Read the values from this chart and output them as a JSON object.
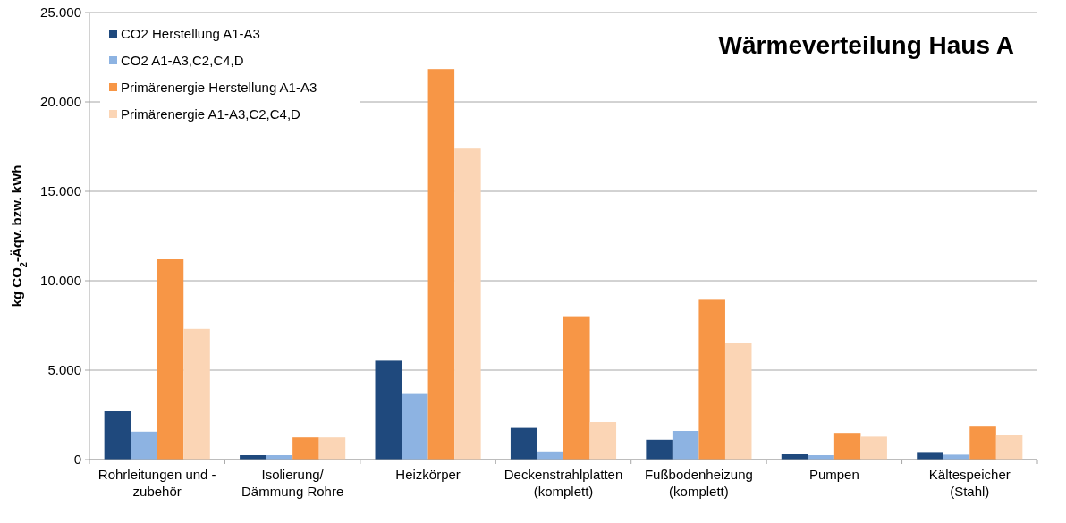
{
  "chart_data": {
    "type": "bar",
    "title": "Wärmeverteilung Haus A",
    "ylabel": "kg CO$_{2}$-Äqv. bzw.  kWh",
    "categories": [
      "Rohrleitungen und -\nzubehör",
      "Isolierung/\nDämmung Rohre",
      "Heizkörper",
      "Deckenstrahlplatten\n(komplett)",
      "Fußbodenheizung\n(komplett)",
      "Pumpen",
      "Kältespeicher\n(Stahl)"
    ],
    "series": [
      {
        "name": "CO2 Herstellung A1-A3",
        "color": "#1f497d",
        "values": [
          2700,
          250,
          5530,
          1770,
          1110,
          300,
          380
        ]
      },
      {
        "name": "CO2 A1-A3,C2,C4,D",
        "color": "#8db3e2",
        "values": [
          1560,
          250,
          3670,
          410,
          1600,
          250,
          280
        ]
      },
      {
        "name": "Primärenergie Herstellung A1-A3",
        "color": "#f79646",
        "values": [
          11200,
          1240,
          21840,
          7970,
          8930,
          1490,
          1840
        ]
      },
      {
        "name": "Primärenergie A1-A3,C2,C4,D",
        "color": "#fbd5b5",
        "values": [
          7310,
          1240,
          17390,
          2100,
          6500,
          1280,
          1350
        ]
      }
    ],
    "ylim": [
      0,
      25000
    ],
    "yticks": [
      {
        "value": 0,
        "label": "0"
      },
      {
        "value": 5000,
        "label": "5.000"
      },
      {
        "value": 10000,
        "label": "10.000"
      },
      {
        "value": 15000,
        "label": "15.000"
      },
      {
        "value": 20000,
        "label": "20.000"
      },
      {
        "value": 25000,
        "label": "25.000"
      }
    ],
    "grid": "y",
    "legend": "top left"
  }
}
